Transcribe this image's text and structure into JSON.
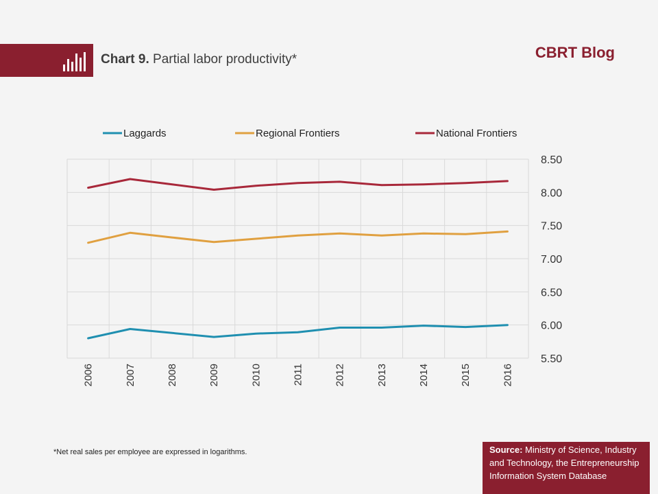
{
  "header": {
    "chart_number": "Chart 9.",
    "chart_title": "Partial labor productivity*",
    "brand": "CBRT Blog",
    "icon": "bar-chart-icon"
  },
  "footnote": "*Net real sales per employee are expressed in logarithms.",
  "source": {
    "label": "Source:",
    "text": "Ministry of Science, Industry and Technology, the Entrepreneurship Information System Database"
  },
  "colors": {
    "brand": "#8a1f2f",
    "laggards": "#1f8fb0",
    "regional": "#e0a040",
    "national": "#a8283a"
  },
  "chart_data": {
    "type": "line",
    "x": [
      "2006",
      "2007",
      "2008",
      "2009",
      "2010",
      "2011",
      "2012",
      "2013",
      "2014",
      "2015",
      "2016"
    ],
    "ylim": [
      5.5,
      8.5
    ],
    "yticks": [
      "8.50",
      "8.00",
      "7.50",
      "7.00",
      "6.50",
      "6.00",
      "5.50"
    ],
    "ytick_values": [
      8.5,
      8.0,
      7.5,
      7.0,
      6.5,
      6.0,
      5.5
    ],
    "y_axis_side": "right",
    "grid": true,
    "legend_position": "top",
    "series": [
      {
        "name": "Laggards",
        "color": "#1f8fb0",
        "values": [
          5.8,
          5.94,
          5.88,
          5.82,
          5.87,
          5.89,
          5.96,
          5.96,
          5.99,
          5.97,
          6.0
        ]
      },
      {
        "name": "Regional Frontiers",
        "color": "#e0a040",
        "values": [
          7.24,
          7.39,
          7.32,
          7.25,
          7.3,
          7.35,
          7.38,
          7.35,
          7.38,
          7.37,
          7.41
        ]
      },
      {
        "name": "National Frontiers",
        "color": "#a8283a",
        "values": [
          8.07,
          8.2,
          8.12,
          8.04,
          8.1,
          8.14,
          8.16,
          8.11,
          8.12,
          8.14,
          8.17
        ]
      }
    ]
  }
}
